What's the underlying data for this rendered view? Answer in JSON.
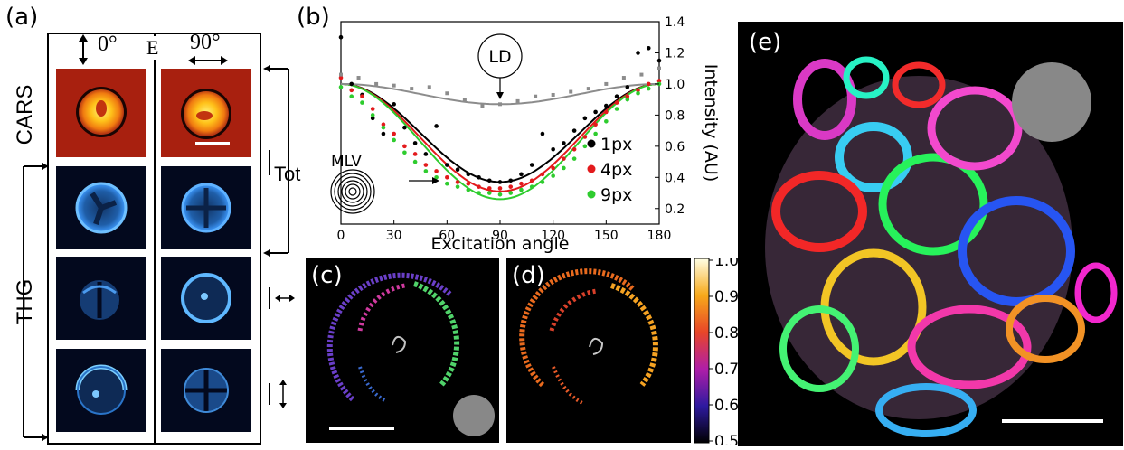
{
  "panels": {
    "a": "(a)",
    "b": "(b)",
    "c": "(c)",
    "d": "(d)",
    "e": "(e)"
  },
  "panel_a": {
    "angle_0": "0°",
    "e_field": "E",
    "angle_90": "90°",
    "row_cars": "CARS",
    "row_thg": "THG",
    "label_tot": "Tot"
  },
  "colors": {
    "cars_bg": "#a8200f",
    "thg_bg": "#03091e",
    "thg_signal": "#3f9bff",
    "s1": "#000000",
    "s4": "#e31a1c",
    "s9": "#2ecc2e",
    "ld": "#8c8c8c"
  },
  "colorbar": {
    "ticks": [
      "1.0",
      "0.9",
      "0.8",
      "0.7",
      "0.6",
      "0.5"
    ]
  },
  "chart_data": {
    "type": "scatter",
    "xlabel": "Excitation angle",
    "ylabel": "Intensity (AU)",
    "xlim": [
      0,
      180
    ],
    "ylim": [
      0.1,
      1.4
    ],
    "xticks": [
      "0",
      "30",
      "60",
      "90",
      "120",
      "150",
      "180"
    ],
    "yticks": [
      "0.2",
      "0.4",
      "0.6",
      "0.8",
      "1.0",
      "1.2",
      "1.4"
    ],
    "annotations": {
      "ld": "LD",
      "mlv": "MLV"
    },
    "legend_position": "right",
    "series": [
      {
        "name": "1px",
        "color": "#000000",
        "fit": {
          "mean": 0.685,
          "amp": 0.315,
          "min_at": 90
        },
        "x": [
          0,
          6,
          12,
          18,
          24,
          30,
          36,
          42,
          48,
          54,
          60,
          66,
          72,
          78,
          84,
          90,
          96,
          102,
          108,
          114,
          120,
          126,
          132,
          138,
          144,
          150,
          156,
          162,
          168,
          174,
          180
        ],
        "y": [
          1.3,
          1.0,
          0.93,
          0.78,
          0.68,
          0.87,
          0.72,
          0.62,
          0.55,
          0.73,
          0.48,
          0.45,
          0.42,
          0.4,
          0.38,
          0.37,
          0.38,
          0.42,
          0.48,
          0.68,
          0.58,
          0.62,
          0.7,
          0.78,
          0.82,
          0.86,
          0.92,
          0.98,
          1.2,
          1.23,
          1.15
        ]
      },
      {
        "name": "4px",
        "color": "#e31a1c",
        "fit": {
          "mean": 0.655,
          "amp": 0.345,
          "min_at": 90
        },
        "x": [
          0,
          6,
          12,
          18,
          24,
          30,
          36,
          42,
          48,
          54,
          60,
          66,
          72,
          78,
          84,
          90,
          96,
          102,
          108,
          114,
          120,
          126,
          132,
          138,
          144,
          150,
          156,
          162,
          168,
          174,
          180
        ],
        "y": [
          1.04,
          0.96,
          0.92,
          0.84,
          0.74,
          0.68,
          0.6,
          0.55,
          0.48,
          0.44,
          0.4,
          0.37,
          0.36,
          0.34,
          0.33,
          0.33,
          0.34,
          0.36,
          0.38,
          0.42,
          0.46,
          0.52,
          0.58,
          0.66,
          0.74,
          0.82,
          0.88,
          0.92,
          0.96,
          1.0,
          1.02
        ]
      },
      {
        "name": "9px",
        "color": "#2ecc2e",
        "fit": {
          "mean": 0.63,
          "amp": 0.37,
          "min_at": 90
        },
        "x": [
          0,
          6,
          12,
          18,
          24,
          30,
          36,
          42,
          48,
          54,
          60,
          66,
          72,
          78,
          84,
          90,
          96,
          102,
          108,
          114,
          120,
          126,
          132,
          138,
          144,
          150,
          156,
          162,
          168,
          174,
          180
        ],
        "y": [
          0.98,
          0.92,
          0.88,
          0.8,
          0.72,
          0.64,
          0.56,
          0.5,
          0.44,
          0.4,
          0.36,
          0.34,
          0.32,
          0.3,
          0.3,
          0.29,
          0.3,
          0.32,
          0.34,
          0.37,
          0.41,
          0.46,
          0.52,
          0.6,
          0.68,
          0.76,
          0.84,
          0.9,
          0.94,
          0.97,
          1.0
        ]
      },
      {
        "color": "#8c8c8c",
        "fit": {
          "mean": 0.935,
          "amp": 0.065,
          "min_at": 90
        },
        "x": [
          0,
          10,
          20,
          30,
          40,
          50,
          60,
          70,
          80,
          90,
          100,
          110,
          120,
          130,
          140,
          150,
          160,
          170,
          180
        ],
        "y": [
          1.06,
          1.04,
          1.0,
          0.99,
          0.97,
          0.98,
          0.94,
          0.9,
          0.86,
          0.87,
          0.89,
          0.92,
          0.93,
          0.95,
          0.97,
          1.0,
          1.04,
          1.06,
          1.1
        ]
      }
    ]
  }
}
